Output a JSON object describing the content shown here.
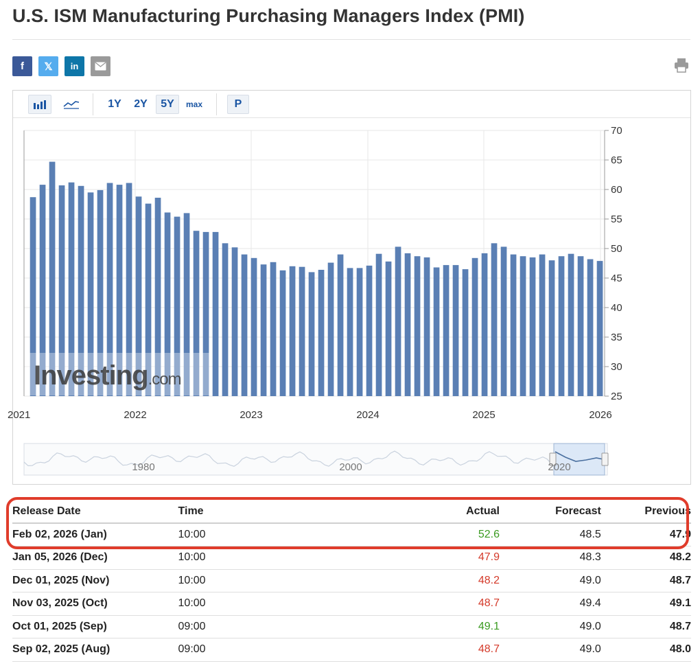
{
  "page": {
    "title": "U.S. ISM Manufacturing Purchasing Managers Index (PMI)"
  },
  "share": {
    "facebook": "f",
    "x": "𝕏",
    "linkedin": "in",
    "email_icon": "envelope-icon",
    "print_icon": "printer-icon"
  },
  "toolbar": {
    "bar_icon": "bar-chart-icon",
    "line_icon": "line-chart-icon",
    "ranges": [
      "1Y",
      "2Y",
      "5Y",
      "max"
    ],
    "active_range": "5Y",
    "p_label": "P"
  },
  "colors": {
    "bar": "#5a7fb4",
    "positive": "#3a9a20",
    "negative": "#d43a2a",
    "highlight": "#e03c2b"
  },
  "chart_data": {
    "type": "bar",
    "x_tick_labels": [
      "2021",
      "2022",
      "2023",
      "2024",
      "2025",
      "2026"
    ],
    "y_ticks": [
      25,
      30,
      35,
      40,
      45,
      50,
      55,
      60,
      65,
      70
    ],
    "ylim": [
      25,
      70
    ],
    "y_axis_side": "right",
    "grid": true,
    "watermark": "Investing.com",
    "series": [
      {
        "values": [
          58.7,
          60.8,
          64.7,
          60.7,
          61.2,
          60.6,
          59.5,
          59.9,
          61.1,
          60.8,
          61.1,
          58.8,
          57.6,
          58.6,
          56.1,
          55.4,
          56.0,
          53.0,
          52.8,
          52.8,
          50.9,
          50.2,
          49.0,
          48.4,
          47.3,
          47.7,
          46.3,
          47.0,
          46.9,
          46.0,
          46.4,
          47.6,
          49.0,
          46.7,
          46.7,
          47.1,
          49.1,
          47.8,
          50.3,
          49.2,
          48.7,
          48.5,
          46.8,
          47.2,
          47.2,
          46.5,
          48.4,
          49.2,
          50.9,
          50.3,
          49.0,
          48.7,
          48.5,
          49.0,
          48.0,
          48.7,
          49.1,
          48.7,
          48.2,
          47.9
        ]
      }
    ],
    "navigator": {
      "labels": [
        "1980",
        "2000",
        "2020"
      ]
    }
  },
  "table": {
    "headers": {
      "release_date": "Release Date",
      "time": "Time",
      "actual": "Actual",
      "forecast": "Forecast",
      "previous": "Previous"
    },
    "rows": [
      {
        "date": "Feb 02, 2026 (Jan)",
        "time": "10:00",
        "actual": "52.6",
        "actual_status": "green",
        "forecast": "48.5",
        "previous": "47.9"
      },
      {
        "date": "Jan 05, 2026 (Dec)",
        "time": "10:00",
        "actual": "47.9",
        "actual_status": "red",
        "forecast": "48.3",
        "previous": "48.2"
      },
      {
        "date": "Dec 01, 2025 (Nov)",
        "time": "10:00",
        "actual": "48.2",
        "actual_status": "red",
        "forecast": "49.0",
        "previous": "48.7"
      },
      {
        "date": "Nov 03, 2025 (Oct)",
        "time": "10:00",
        "actual": "48.7",
        "actual_status": "red",
        "forecast": "49.4",
        "previous": "49.1"
      },
      {
        "date": "Oct 01, 2025 (Sep)",
        "time": "09:00",
        "actual": "49.1",
        "actual_status": "green",
        "forecast": "49.0",
        "previous": "48.7"
      },
      {
        "date": "Sep 02, 2025 (Aug)",
        "time": "09:00",
        "actual": "48.7",
        "actual_status": "red",
        "forecast": "49.0",
        "previous": "48.0"
      }
    ]
  }
}
